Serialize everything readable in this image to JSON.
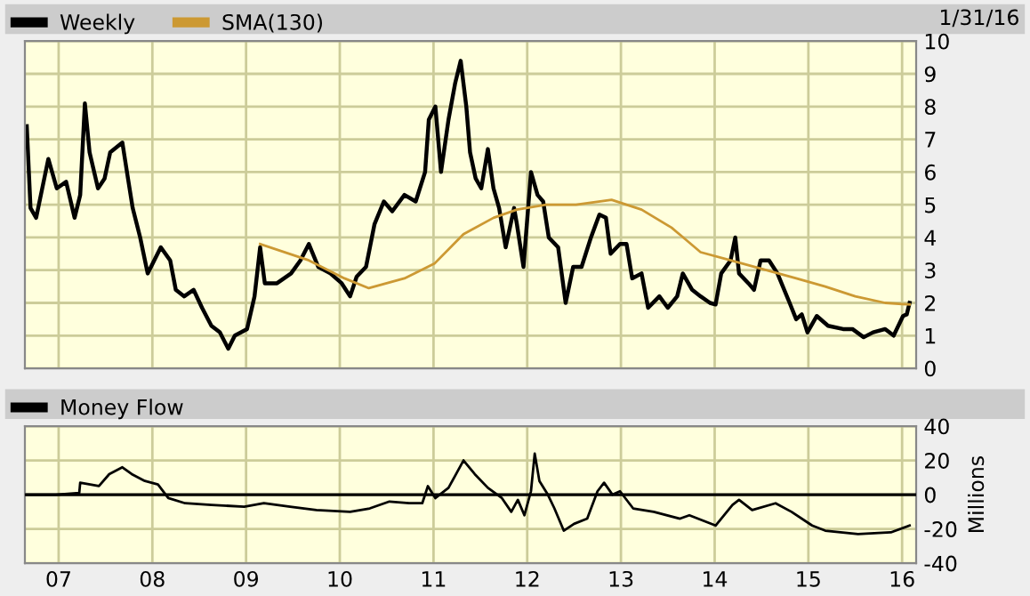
{
  "chart_data": [
    {
      "type": "line",
      "annotations": [
        "1/31/16"
      ],
      "legend": "top left",
      "grid": true,
      "tick_labels": "y",
      "xlim": [
        2006.64,
        2016.15
      ],
      "xticks": [
        {
          "value": 2007,
          "label": null
        },
        {
          "value": 2008,
          "label": null
        },
        {
          "value": 2009,
          "label": null
        },
        {
          "value": 2010,
          "label": null
        },
        {
          "value": 2011,
          "label": null
        },
        {
          "value": 2012,
          "label": null
        },
        {
          "value": 2013,
          "label": null
        },
        {
          "value": 2014,
          "label": null
        },
        {
          "value": 2015,
          "label": null
        },
        {
          "value": 2016,
          "label": null
        }
      ],
      "ylim": [
        0,
        10
      ],
      "yticks": [
        0,
        1,
        2,
        3,
        4,
        5,
        6,
        7,
        8,
        9,
        10
      ],
      "series": [
        {
          "name": "Weekly",
          "color": "#000000",
          "x": [
            2006.66,
            2006.7,
            2006.76,
            2006.89,
            2006.98,
            2007.08,
            2007.17,
            2007.23,
            2007.28,
            2007.33,
            2007.42,
            2007.49,
            2007.55,
            2007.68,
            2007.74,
            2007.79,
            2007.87,
            2007.95,
            2008.09,
            2008.19,
            2008.25,
            2008.34,
            2008.44,
            2008.53,
            2008.63,
            2008.72,
            2008.81,
            2008.88,
            2009.01,
            2009.09,
            2009.15,
            2009.2,
            2009.33,
            2009.48,
            2009.58,
            2009.67,
            2009.77,
            2009.9,
            2010.02,
            2010.11,
            2010.18,
            2010.28,
            2010.37,
            2010.47,
            2010.56,
            2010.69,
            2010.81,
            2010.91,
            2010.95,
            2011.02,
            2011.08,
            2011.16,
            2011.23,
            2011.29,
            2011.35,
            2011.39,
            2011.45,
            2011.51,
            2011.58,
            2011.64,
            2011.7,
            2011.77,
            2011.86,
            2011.89,
            2011.96,
            2012.04,
            2012.11,
            2012.17,
            2012.23,
            2012.33,
            2012.41,
            2012.49,
            2012.58,
            2012.68,
            2012.77,
            2012.84,
            2012.89,
            2012.99,
            2013.06,
            2013.12,
            2013.22,
            2013.29,
            2013.41,
            2013.5,
            2013.6,
            2013.66,
            2013.76,
            2013.85,
            2013.95,
            2014.01,
            2014.07,
            2014.17,
            2014.22,
            2014.26,
            2014.36,
            2014.42,
            2014.49,
            2014.58,
            2014.67,
            2014.8,
            2014.87,
            2014.93,
            2014.99,
            2015.09,
            2015.21,
            2015.37,
            2015.47,
            2015.59,
            2015.69,
            2015.82,
            2015.91,
            2016.01,
            2016.05,
            2016.08
          ],
          "values": [
            7.4,
            4.9,
            4.6,
            6.4,
            5.5,
            5.7,
            4.6,
            5.3,
            8.1,
            6.6,
            5.5,
            5.8,
            6.6,
            6.9,
            5.8,
            4.9,
            4.0,
            2.9,
            3.7,
            3.3,
            2.4,
            2.2,
            2.4,
            1.85,
            1.3,
            1.1,
            0.6,
            1.0,
            1.2,
            2.2,
            3.7,
            2.6,
            2.6,
            2.9,
            3.3,
            3.8,
            3.1,
            2.9,
            2.6,
            2.2,
            2.8,
            3.1,
            4.4,
            5.1,
            4.8,
            5.3,
            5.1,
            6.0,
            7.6,
            8.0,
            6.0,
            7.6,
            8.7,
            9.4,
            8.0,
            6.6,
            5.8,
            5.5,
            6.7,
            5.5,
            4.9,
            3.7,
            4.9,
            4.4,
            3.1,
            6.0,
            5.3,
            5.1,
            4.0,
            3.7,
            2.0,
            3.1,
            3.1,
            4.0,
            4.7,
            4.6,
            3.5,
            3.8,
            3.8,
            2.75,
            2.9,
            1.85,
            2.2,
            1.85,
            2.2,
            2.9,
            2.4,
            2.2,
            2.0,
            1.95,
            2.9,
            3.3,
            4.0,
            2.9,
            2.6,
            2.4,
            3.3,
            3.3,
            2.9,
            2.0,
            1.5,
            1.65,
            1.1,
            1.6,
            1.3,
            1.2,
            1.2,
            0.95,
            1.1,
            1.2,
            1.0,
            1.6,
            1.65,
            2.0
          ]
        },
        {
          "name": "SMA(130)",
          "color": "#cc9933",
          "x": [
            2009.15,
            2009.67,
            2010.05,
            2010.31,
            2010.69,
            2011.01,
            2011.32,
            2011.64,
            2011.89,
            2012.2,
            2012.52,
            2012.9,
            2013.22,
            2013.54,
            2013.85,
            2014.17,
            2014.55,
            2014.87,
            2015.18,
            2015.5,
            2015.82,
            2016.08
          ],
          "values": [
            3.8,
            3.3,
            2.75,
            2.45,
            2.75,
            3.2,
            4.1,
            4.6,
            4.85,
            5.0,
            5.0,
            5.15,
            4.85,
            4.3,
            3.55,
            3.3,
            3.0,
            2.75,
            2.5,
            2.2,
            2.0,
            1.95
          ]
        }
      ]
    },
    {
      "type": "line",
      "ylabel": "Millions",
      "legend": "top left",
      "grid": true,
      "xlim": [
        2006.64,
        2016.15
      ],
      "xticks": [
        {
          "value": 2007,
          "label": "07"
        },
        {
          "value": 2008,
          "label": "08"
        },
        {
          "value": 2009,
          "label": "09"
        },
        {
          "value": 2010,
          "label": "10"
        },
        {
          "value": 2011,
          "label": "11"
        },
        {
          "value": 2012,
          "label": "12"
        },
        {
          "value": 2013,
          "label": "13"
        },
        {
          "value": 2014,
          "label": "14"
        },
        {
          "value": 2015,
          "label": "15"
        },
        {
          "value": 2016,
          "label": "16"
        }
      ],
      "ylim": [
        -40,
        40
      ],
      "yticks": [
        -40,
        -20,
        0,
        20,
        40
      ],
      "ref_lines": [
        {
          "axis": "y",
          "value": 0,
          "color": "#000000"
        }
      ],
      "series": [
        {
          "name": "Money Flow",
          "color": "#000000",
          "x": [
            2006.64,
            2006.97,
            2007.22,
            2007.23,
            2007.43,
            2007.54,
            2007.68,
            2007.78,
            2007.92,
            2008.06,
            2008.17,
            2008.35,
            2008.63,
            2008.98,
            2009.19,
            2009.47,
            2009.75,
            2010.11,
            2010.32,
            2010.53,
            2010.74,
            2010.88,
            2010.94,
            2011.02,
            2011.16,
            2011.32,
            2011.44,
            2011.58,
            2011.73,
            2011.83,
            2011.9,
            2011.97,
            2012.04,
            2012.08,
            2012.13,
            2012.22,
            2012.29,
            2012.39,
            2012.5,
            2012.64,
            2012.75,
            2012.82,
            2012.91,
            2012.99,
            2013.13,
            2013.35,
            2013.63,
            2013.73,
            2014.01,
            2014.19,
            2014.26,
            2014.4,
            2014.65,
            2014.82,
            2015.04,
            2015.18,
            2015.53,
            2015.88,
            2016.08
          ],
          "values": [
            0,
            0,
            1,
            7,
            5,
            12,
            16,
            12,
            8,
            6,
            -2,
            -5,
            -6,
            -7,
            -5,
            -7,
            -9,
            -10,
            -8,
            -4,
            -5,
            -5,
            5,
            -2,
            4,
            20,
            12,
            4,
            -2,
            -10,
            -3,
            -12,
            2,
            24,
            8,
            0,
            -8,
            -21,
            -17,
            -14,
            2,
            7,
            0,
            2,
            -8,
            -10,
            -14,
            -12,
            -18,
            -6,
            -3,
            -9,
            -5,
            -10,
            -18,
            -21,
            -23,
            -22,
            -18
          ]
        }
      ]
    }
  ]
}
